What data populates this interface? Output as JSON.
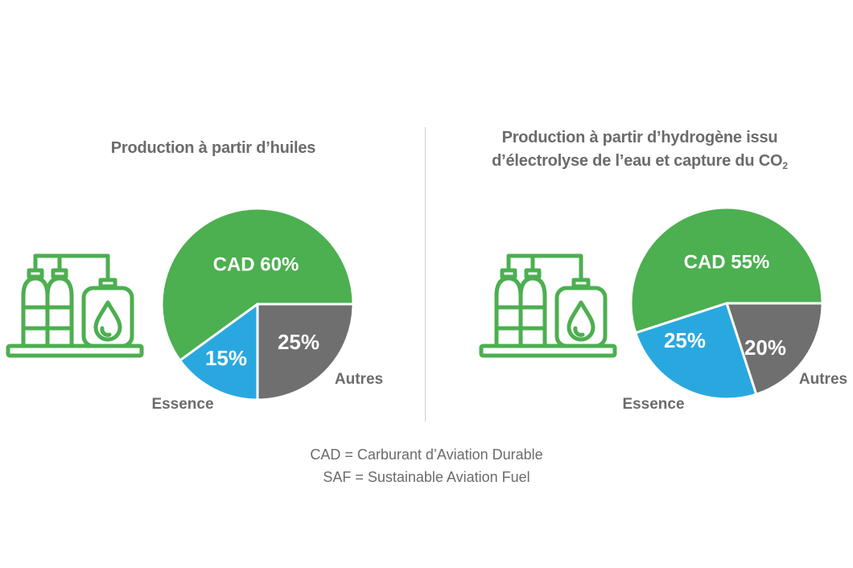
{
  "chart_data": [
    {
      "type": "pie",
      "title": "Production à partir d’huiles",
      "title_lines": [
        "Production à partir d’huiles"
      ],
      "title_subscript": "",
      "slices": [
        {
          "name": "CAD",
          "value": 60,
          "label": "CAD 60%",
          "color": "#4caf50",
          "outside_label": ""
        },
        {
          "name": "Autres",
          "value": 25,
          "label": "25%",
          "color": "#6f6f6f",
          "outside_label": "Autres"
        },
        {
          "name": "Essence",
          "value": 15,
          "label": "15%",
          "color": "#29a8e0",
          "outside_label": "Essence"
        }
      ]
    },
    {
      "type": "pie",
      "title": "Production à partir d’hydrogène issu d’électrolyse de l’eau et capture du CO2",
      "title_lines": [
        "Production à partir d’hydrogène issu",
        "d’électrolyse de l’eau et capture du CO"
      ],
      "title_subscript": "2",
      "slices": [
        {
          "name": "CAD",
          "value": 55,
          "label": "CAD 55%",
          "color": "#4caf50",
          "outside_label": ""
        },
        {
          "name": "Autres",
          "value": 20,
          "label": "20%",
          "color": "#6f6f6f",
          "outside_label": "Autres"
        },
        {
          "name": "Essence",
          "value": 25,
          "label": "25%",
          "color": "#29a8e0",
          "outside_label": "Essence"
        }
      ]
    }
  ],
  "icon": {
    "name": "fuel-tanks-icon",
    "color": "#4caf50"
  },
  "footnote": {
    "line1": "CAD = Carburant d’Aviation Durable",
    "line2": "SAF = Sustainable Aviation Fuel"
  }
}
